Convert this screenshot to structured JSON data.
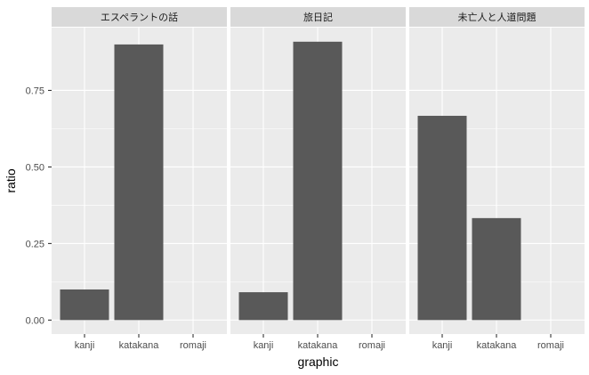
{
  "chart_data": {
    "type": "bar",
    "xlabel": "graphic",
    "ylabel": "ratio",
    "categories": [
      "kanji",
      "katakana",
      "romaji"
    ],
    "ylim": [
      -0.0455,
      0.955
    ],
    "yticks": [
      0.0,
      0.25,
      0.5,
      0.75
    ],
    "ytick_labels": [
      "0.00",
      "0.25",
      "0.50",
      "0.75"
    ],
    "grid": true,
    "legend": "none",
    "bar_color": "#595959",
    "panel_background": "#ebebeb",
    "strip_background": "#d9d9d9",
    "gridline_color": "#ffffff",
    "facets": [
      {
        "title": "エスペラントの話",
        "values": [
          0.1,
          0.9,
          0.0
        ]
      },
      {
        "title": "旅日記",
        "values": [
          0.091,
          0.909,
          0.0
        ]
      },
      {
        "title": "未亡人と人道問題",
        "values": [
          0.667,
          0.333,
          0.0
        ]
      }
    ]
  }
}
